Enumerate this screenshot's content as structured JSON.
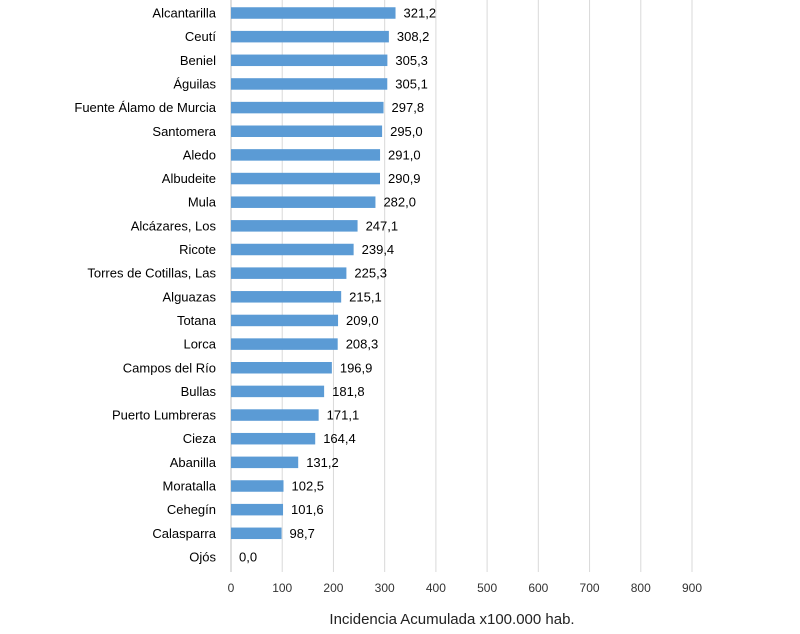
{
  "chart_data": {
    "type": "bar",
    "orientation": "horizontal",
    "categories": [
      "Alcantarilla",
      "Ceutí",
      "Beniel",
      "Águilas",
      "Fuente Álamo de Murcia",
      "Santomera",
      "Aledo",
      "Albudeite",
      "Mula",
      "Alcázares, Los",
      "Ricote",
      "Torres de Cotillas, Las",
      "Alguazas",
      "Totana",
      "Lorca",
      "Campos del Río",
      "Bullas",
      "Puerto Lumbreras",
      "Cieza",
      "Abanilla",
      "Moratalla",
      "Cehegín",
      "Calasparra",
      "Ojós"
    ],
    "values": [
      321.2,
      308.2,
      305.3,
      305.1,
      297.8,
      295.0,
      291.0,
      290.9,
      282.0,
      247.1,
      239.4,
      225.3,
      215.1,
      209.0,
      208.3,
      196.9,
      181.8,
      171.1,
      164.4,
      131.2,
      102.5,
      101.6,
      98.7,
      0.0
    ],
    "value_labels": [
      "321,2",
      "308,2",
      "305,3",
      "305,1",
      "297,8",
      "295,0",
      "291,0",
      "290,9",
      "282,0",
      "247,1",
      "239,4",
      "225,3",
      "215,1",
      "209,0",
      "208,3",
      "196,9",
      "181,8",
      "171,1",
      "164,4",
      "131,2",
      "102,5",
      "101,6",
      "98,7",
      "0,0"
    ],
    "xlabel": "Incidencia Acumulada x100.000 hab.",
    "ylabel": "",
    "xlim": [
      0,
      900
    ],
    "xticks": [
      0,
      100,
      200,
      300,
      400,
      500,
      600,
      700,
      800,
      900
    ],
    "grid": true,
    "bar_color": "#5b9bd5"
  }
}
